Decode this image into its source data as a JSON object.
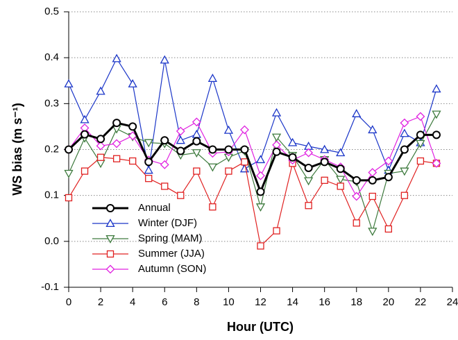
{
  "chart_data": {
    "type": "line",
    "xlabel": "Hour (UTC)",
    "ylabel": "WS bias (m s⁻¹)",
    "x": [
      0,
      1,
      2,
      3,
      4,
      5,
      6,
      7,
      8,
      9,
      10,
      11,
      12,
      13,
      14,
      15,
      16,
      17,
      18,
      19,
      20,
      21,
      22,
      23
    ],
    "xlim": [
      0,
      24
    ],
    "xticks": [
      0,
      2,
      4,
      6,
      8,
      10,
      12,
      14,
      16,
      18,
      20,
      22,
      24
    ],
    "ylim": [
      -0.1,
      0.5
    ],
    "yticks": [
      -0.1,
      {
        "value": 0,
        "label": "0.0"
      },
      0.1,
      0.2,
      0.3,
      0.4,
      0.5
    ],
    "grid": true,
    "legend": "lower left",
    "series": [
      {
        "name": "Annual",
        "color": "#000000",
        "marker": "circle",
        "line_width": 3,
        "values": [
          0.2,
          0.233,
          0.223,
          0.258,
          0.25,
          0.173,
          0.22,
          0.197,
          0.218,
          0.2,
          0.2,
          0.2,
          0.108,
          0.195,
          0.183,
          0.16,
          0.173,
          0.158,
          0.133,
          0.133,
          0.14,
          0.2,
          0.232,
          0.232
        ]
      },
      {
        "name": "Winter (DJF)",
        "color": "#1a35c8",
        "marker": "triangle-up",
        "line_width": 1.2,
        "values": [
          0.343,
          0.265,
          0.327,
          0.398,
          0.343,
          0.155,
          0.395,
          0.22,
          0.233,
          0.355,
          0.242,
          0.158,
          0.178,
          0.28,
          0.215,
          0.207,
          0.2,
          0.193,
          0.278,
          0.243,
          0.155,
          0.235,
          0.215,
          0.332
        ]
      },
      {
        "name": "Spring (MAM)",
        "color": "#3d7a3d",
        "marker": "triangle-down",
        "line_width": 1.2,
        "values": [
          0.148,
          0.225,
          0.17,
          0.245,
          0.228,
          0.215,
          0.213,
          0.188,
          0.193,
          0.162,
          0.183,
          0.197,
          0.075,
          0.227,
          0.187,
          0.132,
          0.178,
          0.135,
          0.13,
          0.022,
          0.148,
          0.153,
          0.213,
          0.277
        ]
      },
      {
        "name": "Summer (JJA)",
        "color": "#e02020",
        "marker": "square",
        "line_width": 1.2,
        "values": [
          0.095,
          0.153,
          0.183,
          0.18,
          0.175,
          0.137,
          0.12,
          0.1,
          0.153,
          0.075,
          0.153,
          0.173,
          -0.01,
          0.023,
          0.17,
          0.078,
          0.133,
          0.12,
          0.04,
          0.098,
          0.027,
          0.1,
          0.175,
          0.17
        ]
      },
      {
        "name": "Autumn (SON)",
        "color": "#e020e0",
        "marker": "diamond",
        "line_width": 1.2,
        "values": [
          0.2,
          0.247,
          0.208,
          0.213,
          0.23,
          0.177,
          0.167,
          0.24,
          0.26,
          0.192,
          0.195,
          0.243,
          0.143,
          0.21,
          0.177,
          0.193,
          0.178,
          0.162,
          0.098,
          0.15,
          0.175,
          0.258,
          0.272,
          0.17
        ]
      }
    ]
  }
}
